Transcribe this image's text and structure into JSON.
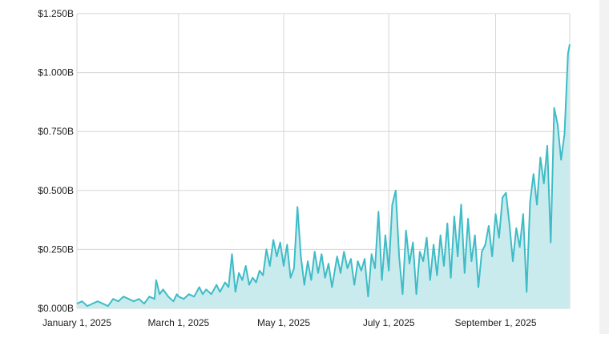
{
  "chart_data": {
    "type": "area",
    "title": "",
    "xlabel": "",
    "ylabel": "",
    "x_start": "2025-01-01",
    "x_end": "2025-10-14",
    "y_unit": "B",
    "ylim": [
      0,
      1.25
    ],
    "yticks": [
      {
        "value": 0,
        "label": "$0.000B"
      },
      {
        "value": 0.25,
        "label": "$0.250B"
      },
      {
        "value": 0.5,
        "label": "$0.500B"
      },
      {
        "value": 0.75,
        "label": "$0.750B"
      },
      {
        "value": 1.0,
        "label": "$1.000B"
      },
      {
        "value": 1.25,
        "label": "$1.250B"
      }
    ],
    "xticks": [
      {
        "date": "2025-01-01",
        "label": "January 1, 2025"
      },
      {
        "date": "2025-03-01",
        "label": "March 1, 2025"
      },
      {
        "date": "2025-05-01",
        "label": "May 1, 2025"
      },
      {
        "date": "2025-07-01",
        "label": "July 1, 2025"
      },
      {
        "date": "2025-09-01",
        "label": "September 1, 2025"
      }
    ],
    "grid": true,
    "colors": {
      "line": "#3fbcc6",
      "fill": "#c9ebee",
      "grid": "#d6d6d6"
    },
    "series": [
      {
        "points": [
          [
            "2025-01-01",
            0.02
          ],
          [
            "2025-01-04",
            0.03
          ],
          [
            "2025-01-07",
            0.01
          ],
          [
            "2025-01-10",
            0.02
          ],
          [
            "2025-01-13",
            0.03
          ],
          [
            "2025-01-16",
            0.02
          ],
          [
            "2025-01-19",
            0.01
          ],
          [
            "2025-01-22",
            0.04
          ],
          [
            "2025-01-25",
            0.03
          ],
          [
            "2025-01-28",
            0.05
          ],
          [
            "2025-01-31",
            0.04
          ],
          [
            "2025-02-03",
            0.03
          ],
          [
            "2025-02-06",
            0.04
          ],
          [
            "2025-02-09",
            0.02
          ],
          [
            "2025-02-12",
            0.05
          ],
          [
            "2025-02-15",
            0.04
          ],
          [
            "2025-02-16",
            0.12
          ],
          [
            "2025-02-18",
            0.06
          ],
          [
            "2025-02-20",
            0.08
          ],
          [
            "2025-02-23",
            0.05
          ],
          [
            "2025-02-26",
            0.03
          ],
          [
            "2025-02-28",
            0.06
          ],
          [
            "2025-03-01",
            0.05
          ],
          [
            "2025-03-04",
            0.04
          ],
          [
            "2025-03-07",
            0.06
          ],
          [
            "2025-03-10",
            0.05
          ],
          [
            "2025-03-13",
            0.09
          ],
          [
            "2025-03-15",
            0.06
          ],
          [
            "2025-03-17",
            0.08
          ],
          [
            "2025-03-20",
            0.06
          ],
          [
            "2025-03-23",
            0.1
          ],
          [
            "2025-03-25",
            0.07
          ],
          [
            "2025-03-28",
            0.11
          ],
          [
            "2025-03-30",
            0.09
          ],
          [
            "2025-04-01",
            0.23
          ],
          [
            "2025-04-03",
            0.07
          ],
          [
            "2025-04-05",
            0.15
          ],
          [
            "2025-04-07",
            0.12
          ],
          [
            "2025-04-09",
            0.18
          ],
          [
            "2025-04-11",
            0.1
          ],
          [
            "2025-04-13",
            0.13
          ],
          [
            "2025-04-15",
            0.11
          ],
          [
            "2025-04-17",
            0.16
          ],
          [
            "2025-04-19",
            0.14
          ],
          [
            "2025-04-21",
            0.25
          ],
          [
            "2025-04-23",
            0.18
          ],
          [
            "2025-04-25",
            0.29
          ],
          [
            "2025-04-27",
            0.22
          ],
          [
            "2025-04-29",
            0.28
          ],
          [
            "2025-05-01",
            0.18
          ],
          [
            "2025-05-03",
            0.27
          ],
          [
            "2025-05-05",
            0.13
          ],
          [
            "2025-05-07",
            0.17
          ],
          [
            "2025-05-09",
            0.43
          ],
          [
            "2025-05-11",
            0.22
          ],
          [
            "2025-05-13",
            0.1
          ],
          [
            "2025-05-15",
            0.2
          ],
          [
            "2025-05-17",
            0.12
          ],
          [
            "2025-05-19",
            0.24
          ],
          [
            "2025-05-21",
            0.15
          ],
          [
            "2025-05-23",
            0.23
          ],
          [
            "2025-05-25",
            0.13
          ],
          [
            "2025-05-27",
            0.19
          ],
          [
            "2025-05-29",
            0.09
          ],
          [
            "2025-06-01",
            0.22
          ],
          [
            "2025-06-03",
            0.15
          ],
          [
            "2025-06-05",
            0.24
          ],
          [
            "2025-06-07",
            0.17
          ],
          [
            "2025-06-09",
            0.21
          ],
          [
            "2025-06-11",
            0.1
          ],
          [
            "2025-06-13",
            0.2
          ],
          [
            "2025-06-15",
            0.16
          ],
          [
            "2025-06-17",
            0.21
          ],
          [
            "2025-06-19",
            0.05
          ],
          [
            "2025-06-21",
            0.23
          ],
          [
            "2025-06-23",
            0.17
          ],
          [
            "2025-06-25",
            0.41
          ],
          [
            "2025-06-27",
            0.12
          ],
          [
            "2025-06-29",
            0.31
          ],
          [
            "2025-07-01",
            0.16
          ],
          [
            "2025-07-03",
            0.44
          ],
          [
            "2025-07-05",
            0.5
          ],
          [
            "2025-07-07",
            0.22
          ],
          [
            "2025-07-09",
            0.06
          ],
          [
            "2025-07-11",
            0.33
          ],
          [
            "2025-07-13",
            0.19
          ],
          [
            "2025-07-15",
            0.28
          ],
          [
            "2025-07-17",
            0.06
          ],
          [
            "2025-07-19",
            0.24
          ],
          [
            "2025-07-21",
            0.2
          ],
          [
            "2025-07-23",
            0.3
          ],
          [
            "2025-07-25",
            0.12
          ],
          [
            "2025-07-27",
            0.27
          ],
          [
            "2025-07-29",
            0.14
          ],
          [
            "2025-07-31",
            0.31
          ],
          [
            "2025-08-02",
            0.18
          ],
          [
            "2025-08-04",
            0.36
          ],
          [
            "2025-08-06",
            0.13
          ],
          [
            "2025-08-08",
            0.39
          ],
          [
            "2025-08-10",
            0.22
          ],
          [
            "2025-08-12",
            0.44
          ],
          [
            "2025-08-14",
            0.15
          ],
          [
            "2025-08-16",
            0.38
          ],
          [
            "2025-08-18",
            0.2
          ],
          [
            "2025-08-20",
            0.31
          ],
          [
            "2025-08-22",
            0.09
          ],
          [
            "2025-08-24",
            0.24
          ],
          [
            "2025-08-26",
            0.27
          ],
          [
            "2025-08-28",
            0.35
          ],
          [
            "2025-08-30",
            0.22
          ],
          [
            "2025-09-01",
            0.4
          ],
          [
            "2025-09-03",
            0.3
          ],
          [
            "2025-09-05",
            0.47
          ],
          [
            "2025-09-07",
            0.49
          ],
          [
            "2025-09-09",
            0.36
          ],
          [
            "2025-09-11",
            0.2
          ],
          [
            "2025-09-13",
            0.34
          ],
          [
            "2025-09-15",
            0.26
          ],
          [
            "2025-09-17",
            0.4
          ],
          [
            "2025-09-19",
            0.07
          ],
          [
            "2025-09-21",
            0.45
          ],
          [
            "2025-09-23",
            0.57
          ],
          [
            "2025-09-25",
            0.44
          ],
          [
            "2025-09-27",
            0.64
          ],
          [
            "2025-09-29",
            0.53
          ],
          [
            "2025-10-01",
            0.69
          ],
          [
            "2025-10-03",
            0.28
          ],
          [
            "2025-10-05",
            0.85
          ],
          [
            "2025-10-07",
            0.78
          ],
          [
            "2025-10-09",
            0.63
          ],
          [
            "2025-10-11",
            0.74
          ],
          [
            "2025-10-13",
            1.08
          ],
          [
            "2025-10-14",
            1.12
          ]
        ]
      }
    ]
  }
}
